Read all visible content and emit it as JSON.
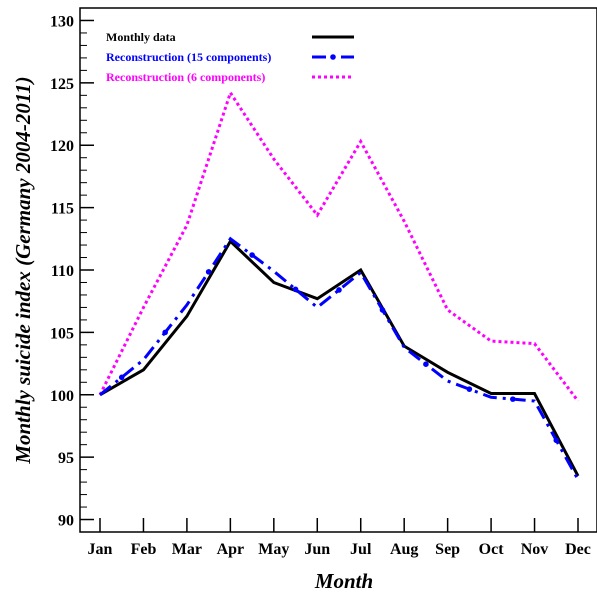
{
  "chart_data": {
    "type": "line",
    "xlabel": "Month",
    "ylabel": "Monthly suicide index (Germany 2004-2011)",
    "categories": [
      "Jan",
      "Feb",
      "Mar",
      "Apr",
      "May",
      "Jun",
      "Jul",
      "Aug",
      "Sep",
      "Oct",
      "Nov",
      "Dec"
    ],
    "ylim": [
      89,
      131
    ],
    "yticks": [
      90,
      95,
      100,
      105,
      110,
      115,
      120,
      125,
      130
    ],
    "legend_position": "top-left",
    "grid": false,
    "series": [
      {
        "name": "Monthly data",
        "color": "#000000",
        "style": "solid",
        "values": [
          100.0,
          102.0,
          106.3,
          112.3,
          109.0,
          107.7,
          110.0,
          103.9,
          101.8,
          100.1,
          100.1,
          93.5
        ]
      },
      {
        "name": "Reconstruction (15 components)",
        "color": "#0000ff",
        "style": "dashdot",
        "values": [
          100.0,
          102.8,
          107.2,
          112.5,
          109.9,
          107.0,
          109.8,
          103.8,
          101.1,
          99.8,
          99.5,
          93.2
        ]
      },
      {
        "name": "Reconstruction (6 components)",
        "color": "#ff00ff",
        "style": "dotted",
        "values": [
          100.0,
          107.0,
          113.6,
          124.2,
          118.9,
          114.4,
          120.3,
          113.9,
          106.8,
          104.3,
          104.1,
          99.5
        ]
      }
    ]
  }
}
